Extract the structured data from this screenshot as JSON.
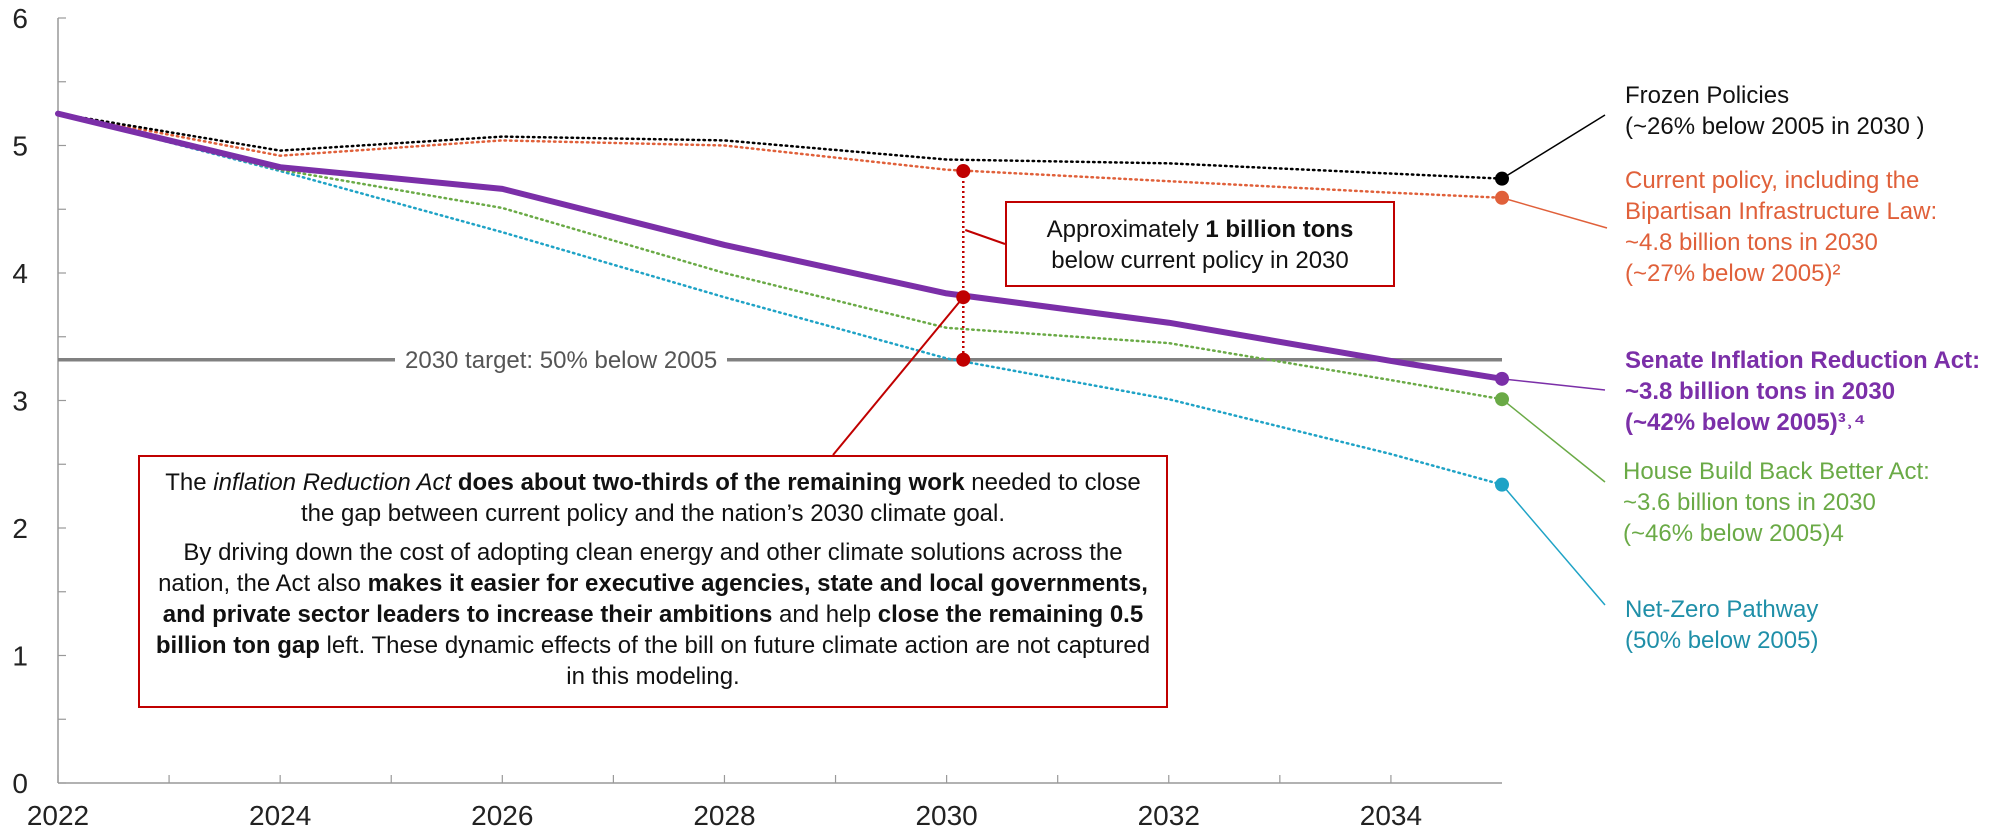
{
  "chart_data": {
    "type": "line",
    "xlim": [
      2022,
      2035
    ],
    "ylim": [
      0,
      6
    ],
    "x_ticks": [
      "2022",
      "2024",
      "2026",
      "2028",
      "2030",
      "2032",
      "2034"
    ],
    "y_ticks": [
      "0",
      "1",
      "2",
      "3",
      "4",
      "5",
      "6"
    ],
    "grid": false,
    "target": {
      "value": 3.32,
      "label": "2030 target: 50% below 2005",
      "color": "#808080"
    },
    "series": [
      {
        "key": "frozen",
        "color": "#000000",
        "style": "dotted",
        "x": [
          2022,
          2024,
          2026,
          2028,
          2030,
          2032,
          2034,
          2035
        ],
        "y": [
          5.25,
          4.96,
          5.07,
          5.04,
          4.89,
          4.86,
          4.78,
          4.74
        ],
        "label_lines": [
          "Frozen Policies",
          "(~26% below 2005 in 2030 )"
        ]
      },
      {
        "key": "current",
        "color": "#e0603a",
        "style": "dotted",
        "x": [
          2022,
          2024,
          2026,
          2028,
          2030,
          2032,
          2034,
          2035
        ],
        "y": [
          5.25,
          4.92,
          5.04,
          5.0,
          4.81,
          4.72,
          4.63,
          4.59
        ],
        "label_lines": [
          "Current policy, including the",
          "Bipartisan Infrastructure Law:",
          "~4.8 billion tons in 2030",
          "(~27% below 2005)²"
        ]
      },
      {
        "key": "ira",
        "color": "#7b2fa8",
        "style": "solid",
        "x": [
          2022,
          2024,
          2026,
          2028,
          2030,
          2032,
          2034,
          2035
        ],
        "y": [
          5.25,
          4.83,
          4.66,
          4.22,
          3.84,
          3.61,
          3.31,
          3.17
        ],
        "label_lines": [
          "Senate Inflation Reduction Act:",
          "~3.8 billion tons in 2030",
          "(~42% below 2005)³˒⁴"
        ]
      },
      {
        "key": "bbb",
        "color": "#6aaa46",
        "style": "dotted",
        "x": [
          2022,
          2024,
          2026,
          2028,
          2030,
          2032,
          2034,
          2035
        ],
        "y": [
          5.25,
          4.81,
          4.51,
          4.0,
          3.57,
          3.45,
          3.16,
          3.01
        ],
        "label_lines": [
          "House Build Back Better Act:",
          "~3.6 billion tons in 2030",
          "(~46% below 2005)4"
        ]
      },
      {
        "key": "netzero",
        "color": "#1fa3c6",
        "style": "dotted",
        "x": [
          2022,
          2024,
          2026,
          2028,
          2030,
          2032,
          2034,
          2035
        ],
        "y": [
          5.25,
          4.8,
          4.32,
          3.81,
          3.33,
          3.01,
          2.58,
          2.34
        ],
        "label_lines": [
          "Net-Zero Pathway",
          "(50% below 2005)"
        ]
      }
    ],
    "markers_2030": {
      "x": 2030.15,
      "values": [
        4.8,
        3.81,
        3.32
      ]
    },
    "callout_small": {
      "pre": "Approximately ",
      "bold": "1 billion tons",
      "line2": "below current policy in 2030"
    },
    "callout_big": {
      "p1_a": "The ",
      "p1_b": "inflation Reduction Act",
      "p1_c": " ",
      "p1_d": "does about two-thirds of the remaining work",
      "p1_e": " needed to close the gap between current policy and the nation’s 2030 climate goal.",
      "p2_a": "By driving down the cost of adopting clean energy and other climate solutions across the nation, the Act also ",
      "p2_b": "makes it easier for executive agencies, state and local governments, and private sector leaders to increase their ambitions",
      "p2_c": " and help ",
      "p2_d": "close the remaining 0.5 billion ton gap",
      "p2_e": " left. These dynamic effects of the bill on future climate action are not captured in this modeling."
    }
  }
}
